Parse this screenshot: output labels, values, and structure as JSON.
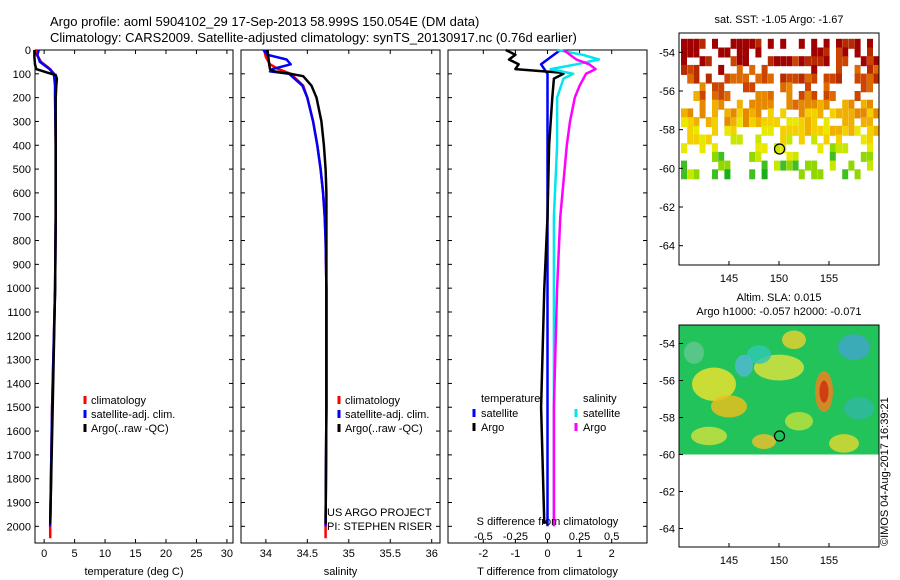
{
  "header": {
    "title_line1": "Argo profile: aoml 5904102_29 17-Sep-2013 58.999S 150.054E (DM data)",
    "title_line2": "Climatology: CARS2009. Satellite-adjusted climatology: synTS_20130917.nc (0.76d earlier)"
  },
  "colors": {
    "climatology": "#ff0000",
    "satellite_adj": "#0000ff",
    "argo": "#000000",
    "salinity_satellite": "#00e5ee",
    "salinity_argo": "#ff00ff"
  },
  "chart_data": [
    {
      "id": "temperature",
      "type": "line",
      "xlabel": "temperature (deg C)",
      "xlim": [
        -1.5,
        31
      ],
      "xticks": [
        0,
        5,
        10,
        15,
        20,
        25,
        30
      ],
      "ylim": [
        2070,
        0
      ],
      "yticks": [
        0,
        100,
        200,
        300,
        400,
        500,
        600,
        700,
        800,
        900,
        1000,
        1100,
        1200,
        1300,
        1400,
        1500,
        1600,
        1700,
        1800,
        1900,
        2000
      ],
      "legend": [
        "climatology",
        "satellite-adj. clim.",
        "Argo(..raw -QC)"
      ],
      "legend_position": "lower-center",
      "series": [
        {
          "name": "climatology",
          "color_key": "climatology",
          "depth": [
            0,
            20,
            50,
            80,
            100,
            150,
            200,
            400,
            700,
            1000,
            1500,
            2000,
            2050
          ],
          "values": [
            -1.3,
            -1.2,
            -0.5,
            1.0,
            1.6,
            1.8,
            1.8,
            1.9,
            1.9,
            1.8,
            1.3,
            1.0,
            1.0
          ]
        },
        {
          "name": "satellite-adj. clim.",
          "color_key": "satellite_adj",
          "depth": [
            0,
            20,
            50,
            80,
            100,
            150,
            200,
            400,
            700,
            1000,
            1500,
            2000
          ],
          "values": [
            -0.9,
            -1.1,
            -0.7,
            0.9,
            1.6,
            1.8,
            1.8,
            1.9,
            1.9,
            1.8,
            1.3,
            1.0
          ]
        },
        {
          "name": "Argo(..raw -QC)",
          "color_key": "argo",
          "depth": [
            0,
            30,
            60,
            80,
            95,
            105,
            120,
            150,
            200,
            400,
            700,
            1000,
            1500,
            1990
          ],
          "values": [
            -1.6,
            -1.6,
            -1.5,
            -1.3,
            0.5,
            1.9,
            2.1,
            2.0,
            1.9,
            1.9,
            1.9,
            1.8,
            1.4,
            1.0
          ]
        }
      ]
    },
    {
      "id": "salinity",
      "type": "line",
      "xlabel": "salinity",
      "xlim": [
        33.7,
        36.1
      ],
      "xticks": [
        34,
        34.5,
        35,
        35.5,
        36
      ],
      "ylim": [
        2070,
        0
      ],
      "legend": [
        "climatology",
        "satellite-adj. clim.",
        "Argo(..raw -QC)"
      ],
      "legend_position": "lower-center",
      "annotations": [
        "US ARGO PROJECT",
        "PI: STEPHEN RISER"
      ],
      "series": [
        {
          "name": "climatology",
          "color_key": "climatology",
          "depth": [
            0,
            30,
            60,
            80,
            100,
            150,
            200,
            300,
            400,
            500,
            600,
            700,
            800,
            1000,
            1500,
            2000,
            2050
          ],
          "values": [
            33.98,
            34.0,
            34.05,
            34.15,
            34.3,
            34.45,
            34.5,
            34.57,
            34.62,
            34.66,
            34.69,
            34.71,
            34.72,
            34.73,
            34.73,
            34.72,
            34.72
          ]
        },
        {
          "name": "satellite-adj. clim.",
          "color_key": "satellite_adj",
          "depth": [
            0,
            20,
            40,
            60,
            80,
            90,
            100,
            150,
            200,
            300,
            400,
            500,
            600,
            700,
            800,
            1000,
            1500,
            2000
          ],
          "values": [
            33.97,
            34.02,
            34.25,
            34.3,
            34.08,
            34.05,
            34.28,
            34.44,
            34.5,
            34.57,
            34.62,
            34.66,
            34.69,
            34.71,
            34.72,
            34.73,
            34.73,
            34.72
          ]
        },
        {
          "name": "Argo(..raw -QC)",
          "color_key": "argo",
          "depth": [
            0,
            60,
            80,
            90,
            100,
            110,
            150,
            200,
            300,
            400,
            500,
            600,
            800,
            1000,
            1500,
            1990
          ],
          "values": [
            34.02,
            34.04,
            34.05,
            34.1,
            34.3,
            34.45,
            34.55,
            34.61,
            34.67,
            34.7,
            34.72,
            34.73,
            34.73,
            34.73,
            34.73,
            34.72
          ]
        }
      ]
    },
    {
      "id": "difference",
      "type": "line",
      "xlabel": "T difference from climatology",
      "xlabel_top": "S difference from climatology",
      "xlim": [
        -3.1,
        3.1
      ],
      "xticks": [
        -2,
        -1,
        0,
        1,
        2
      ],
      "xticks_top_positions": [
        -2,
        -1,
        0,
        1,
        2
      ],
      "xticks_top_labels": [
        "-0.5",
        "-0.25",
        "0",
        "0.25",
        "0.5"
      ],
      "ylim": [
        2070,
        0
      ],
      "legend_groups": [
        {
          "title": "temperature",
          "items": [
            {
              "label": "satellite",
              "color_key": "satellite_adj"
            },
            {
              "label": "Argo",
              "color_key": "argo"
            }
          ]
        },
        {
          "title": "salinity",
          "items": [
            {
              "label": "satellite",
              "color_key": "salinity_satellite"
            },
            {
              "label": "Argo",
              "color_key": "salinity_argo"
            }
          ]
        }
      ],
      "series": [
        {
          "name": "temperature satellite",
          "color_key": "satellite_adj",
          "depth": [
            0,
            30,
            60,
            100,
            200,
            400,
            700,
            1000,
            1500,
            2000
          ],
          "values": [
            0.4,
            0.1,
            -0.2,
            0.0,
            0.0,
            0.0,
            0.0,
            0.0,
            0.0,
            0.0
          ]
        },
        {
          "name": "temperature Argo",
          "color_key": "argo",
          "depth": [
            0,
            20,
            40,
            60,
            80,
            95,
            100,
            120,
            200,
            400,
            700,
            1000,
            1500,
            1990
          ],
          "values": [
            -1.3,
            -1.0,
            -1.2,
            -0.9,
            -1.0,
            0.4,
            0.5,
            0.2,
            0.15,
            0.05,
            0.0,
            -0.1,
            -0.2,
            -0.1
          ]
        },
        {
          "name": "salinity satellite",
          "color_key": "salinity_satellite",
          "depth": [
            0,
            20,
            40,
            60,
            80,
            100,
            120,
            200,
            400,
            700,
            1000,
            1500,
            2000
          ],
          "values": [
            0.3,
            1.1,
            1.6,
            0.9,
            0.1,
            0.8,
            0.5,
            0.3,
            0.3,
            0.2,
            0.2,
            0.2,
            0.2
          ]
        },
        {
          "name": "salinity Argo",
          "color_key": "salinity_argo",
          "depth": [
            0,
            40,
            60,
            80,
            100,
            150,
            200,
            300,
            400,
            700,
            1000,
            1500,
            2000
          ],
          "values": [
            0.5,
            0.9,
            1.3,
            1.5,
            1.2,
            1.0,
            0.85,
            0.7,
            0.6,
            0.4,
            0.3,
            0.2,
            0.2
          ]
        }
      ]
    },
    {
      "id": "sst_map",
      "type": "heatmap",
      "title": "sat. SST: -1.05 Argo: -1.67",
      "xticks": [
        145,
        150,
        155
      ],
      "yticks": [
        -54,
        -56,
        -58,
        -60,
        -62,
        -64
      ],
      "xlim": [
        140,
        160
      ],
      "ylim": [
        -65,
        -53
      ],
      "marker": {
        "lon": 150.054,
        "lat": -58.999
      }
    },
    {
      "id": "sla_map",
      "type": "heatmap",
      "title_line1": "Altim. SLA: 0.015",
      "title_line2": "Argo h1000: -0.057 h2000: -0.071",
      "xticks": [
        145,
        150,
        155
      ],
      "yticks": [
        -54,
        -56,
        -58,
        -60,
        -62,
        -64
      ],
      "xlim": [
        140,
        160
      ],
      "ylim": [
        -65,
        -53
      ],
      "marker": {
        "lon": 150.054,
        "lat": -58.999
      }
    }
  ],
  "footer": {
    "credit": "©IMOS 04-Aug-2017 16:39:21"
  }
}
